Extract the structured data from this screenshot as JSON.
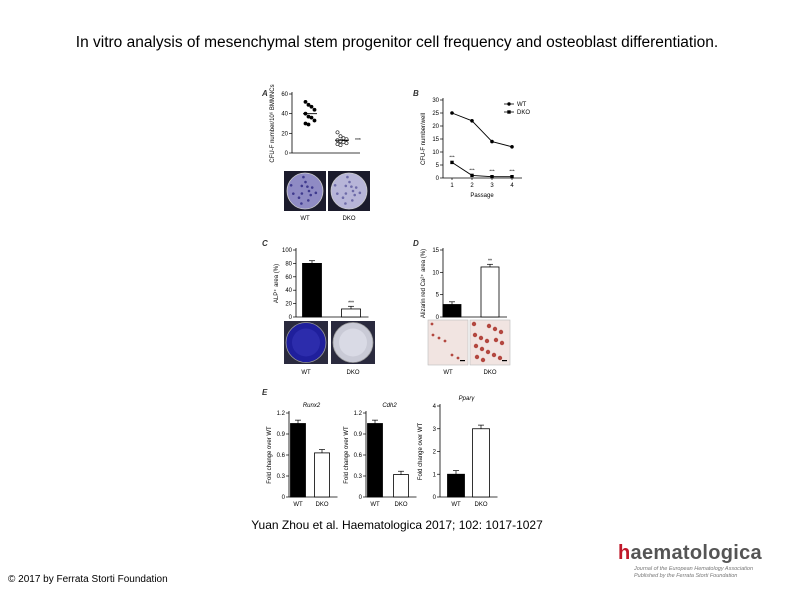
{
  "title": "In vitro analysis of mesenchymal stem progenitor cell frequency and osteoblast differentiation.",
  "citation": "Yuan Zhou et al. Haematologica 2017; 102: 1017-1027",
  "copyright": "© 2017 by Ferrata Storti Foundation",
  "logo": {
    "name_h": "h",
    "name_rest": "aematologica",
    "line1": "Journal of the European Hematology Association",
    "line2": "Published by the Ferrata Storti Foundation",
    "accent": "#c0182a"
  },
  "chart_data": [
    {
      "panel": "A",
      "type": "scatter",
      "ylabel": "CFU-F number/10⁶ BMMNCs",
      "ylim": [
        0,
        60
      ],
      "yticks": [
        0,
        20,
        40,
        60
      ],
      "categories": [
        "WT",
        "DKO"
      ],
      "series": [
        {
          "name": "WT",
          "values": [
            52,
            49,
            47,
            44,
            40,
            37,
            36,
            33,
            30,
            29
          ],
          "mean": 40
        },
        {
          "name": "DKO",
          "values": [
            21,
            17,
            15,
            14,
            13,
            12,
            11,
            10,
            9,
            8
          ],
          "mean": 13
        }
      ],
      "significance": "***",
      "image_labels": [
        "WT",
        "DKO"
      ]
    },
    {
      "panel": "B",
      "type": "line",
      "xlabel": "Passage",
      "ylabel": "CFU-F number/well",
      "x": [
        1,
        2,
        3,
        4
      ],
      "ylim": [
        0,
        30
      ],
      "yticks": [
        0,
        5,
        10,
        15,
        20,
        25,
        30
      ],
      "legend": "top-right",
      "series": [
        {
          "name": "WT",
          "values": [
            25,
            22,
            14,
            12
          ]
        },
        {
          "name": "DKO",
          "values": [
            6,
            1,
            0.5,
            0.5
          ]
        }
      ],
      "significance": [
        "***",
        "***",
        "***",
        "***"
      ]
    },
    {
      "panel": "C",
      "type": "bar",
      "ylabel": "ALP⁺ area (%)",
      "categories": [
        "WT",
        "DKO"
      ],
      "values": [
        80,
        12
      ],
      "ylim": [
        0,
        100
      ],
      "yticks": [
        0,
        20,
        40,
        60,
        80,
        100
      ],
      "significance": "***",
      "colors": [
        "#000000",
        "#ffffff"
      ]
    },
    {
      "panel": "D",
      "type": "bar",
      "ylabel": "Alizarin red Ca²⁺ area (%)",
      "categories": [
        "WT",
        "DKO"
      ],
      "values": [
        2.8,
        11.2
      ],
      "ylim": [
        0,
        15
      ],
      "yticks": [
        0,
        5,
        10,
        15
      ],
      "significance": "**",
      "colors": [
        "#000000",
        "#ffffff"
      ]
    },
    {
      "panel": "E1",
      "type": "bar",
      "title": "Runx2",
      "ylabel": "Fold change over WT",
      "categories": [
        "WT",
        "DKO"
      ],
      "values": [
        1.05,
        0.63
      ],
      "ylim": [
        0,
        1.2
      ],
      "yticks": [
        0,
        0.3,
        0.6,
        0.9,
        1.2
      ],
      "colors": [
        "#000000",
        "#ffffff"
      ]
    },
    {
      "panel": "E2",
      "type": "bar",
      "title": "Cdh2",
      "ylabel": "Fold change over WT",
      "categories": [
        "WT",
        "DKO"
      ],
      "values": [
        1.05,
        0.32
      ],
      "ylim": [
        0,
        1.2
      ],
      "yticks": [
        0,
        0.3,
        0.6,
        0.9,
        1.2
      ],
      "colors": [
        "#000000",
        "#ffffff"
      ]
    },
    {
      "panel": "E3",
      "type": "bar",
      "title": "Pparγ",
      "ylabel": "Fold change over WT",
      "categories": [
        "WT",
        "DKO"
      ],
      "values": [
        1.0,
        3.0
      ],
      "ylim": [
        0,
        4
      ],
      "yticks": [
        0,
        1,
        2,
        3,
        4
      ],
      "colors": [
        "#000000",
        "#ffffff"
      ]
    }
  ]
}
